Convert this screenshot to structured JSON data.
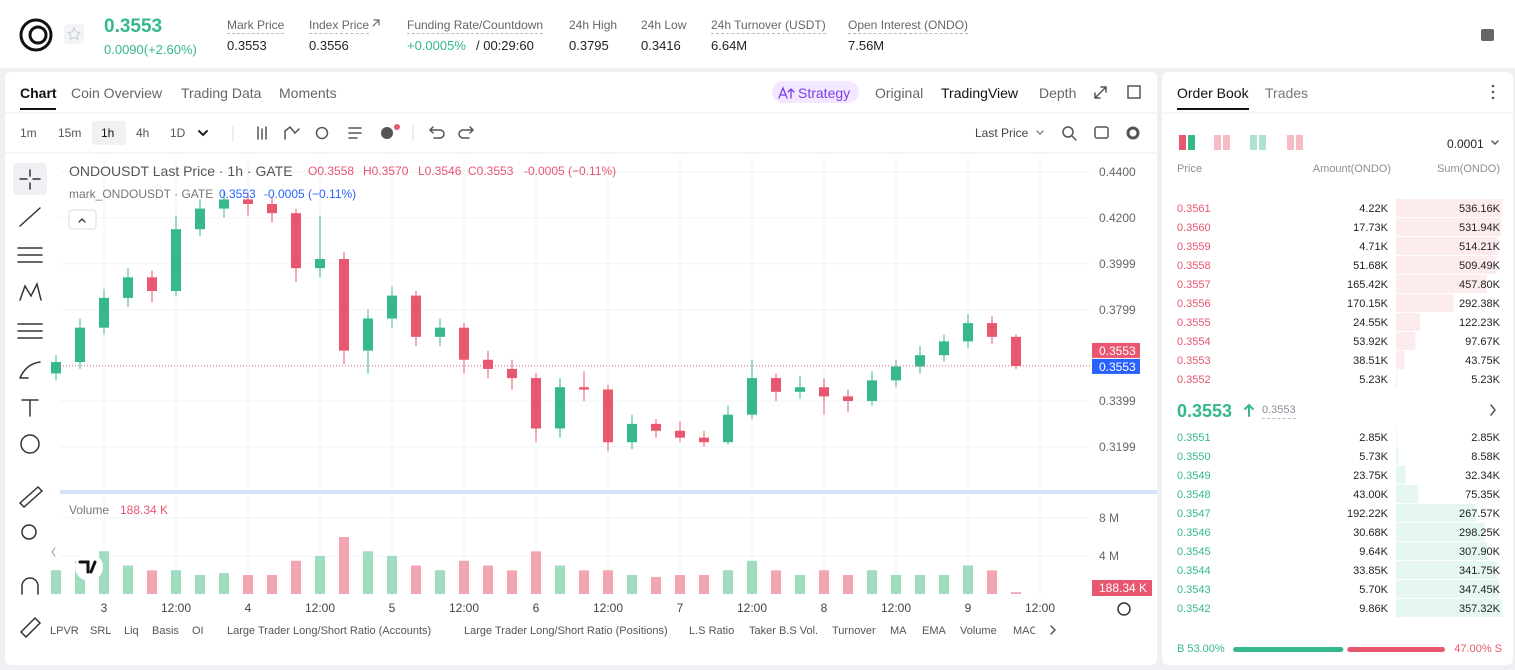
{
  "header": {
    "price": "0.3553",
    "change": "0.0090(+2.60%)",
    "stats": [
      {
        "label": "Mark Price",
        "value": "0.3553"
      },
      {
        "label": "Index Price",
        "value": "0.3556"
      },
      {
        "label": "Funding Rate/Countdown",
        "value": "+0.0005%",
        "extra": "/ 00:29:60"
      },
      {
        "label": "24h High",
        "value": "0.3795"
      },
      {
        "label": "24h Low",
        "value": "0.3416"
      },
      {
        "label": "24h Turnover (USDT)",
        "value": "6.64M"
      },
      {
        "label": "Open Interest (ONDO)",
        "value": "7.56M"
      }
    ]
  },
  "chart_tabs": [
    "Chart",
    "Coin Overview",
    "Trading Data",
    "Moments"
  ],
  "view_tabs": [
    "Strategy",
    "Original",
    "TradingView",
    "Depth"
  ],
  "intervals": [
    "1m",
    "15m",
    "1h",
    "4h",
    "1D"
  ],
  "price_source": "Last Price",
  "legend": {
    "symbol": "ONDOUSDT Last Price · 1h · GATE",
    "o": "O0.3558",
    "h": "H0.3570",
    "l": "L0.3546",
    "c": "C0.3553",
    "change": "-0.0005 (−0.11%)",
    "mark_symbol": "mark_ONDOUSDT · GATE",
    "mark_value": "0.3553",
    "mark_change": "-0.0005 (−0.11%)"
  },
  "chart_data": [
    {
      "type": "candlestick",
      "up_color": "#35b98a",
      "down_color": "#e8566f",
      "open": [
        0.352,
        0.357,
        0.372,
        0.385,
        0.394,
        0.388,
        0.415,
        0.424,
        0.428,
        0.426,
        0.422,
        0.398,
        0.402,
        0.362,
        0.376,
        0.386,
        0.368,
        0.372,
        0.358,
        0.354,
        0.35,
        0.328,
        0.346,
        0.345,
        0.322,
        0.33,
        0.327,
        0.324,
        0.322,
        0.334,
        0.35,
        0.344,
        0.346,
        0.342,
        0.34,
        0.349,
        0.355,
        0.36,
        0.366,
        0.374,
        0.368
      ],
      "high": [
        0.36,
        0.376,
        0.389,
        0.398,
        0.397,
        0.421,
        0.428,
        0.432,
        0.431,
        0.429,
        0.424,
        0.421,
        0.405,
        0.38,
        0.39,
        0.388,
        0.376,
        0.374,
        0.362,
        0.358,
        0.352,
        0.35,
        0.353,
        0.347,
        0.334,
        0.332,
        0.331,
        0.327,
        0.338,
        0.358,
        0.352,
        0.351,
        0.35,
        0.345,
        0.353,
        0.358,
        0.364,
        0.369,
        0.378,
        0.377,
        0.369
      ],
      "low": [
        0.349,
        0.354,
        0.369,
        0.381,
        0.383,
        0.386,
        0.412,
        0.42,
        0.421,
        0.418,
        0.392,
        0.394,
        0.356,
        0.352,
        0.372,
        0.364,
        0.364,
        0.352,
        0.35,
        0.345,
        0.322,
        0.324,
        0.34,
        0.318,
        0.319,
        0.324,
        0.322,
        0.32,
        0.321,
        0.332,
        0.34,
        0.341,
        0.334,
        0.335,
        0.338,
        0.346,
        0.352,
        0.357,
        0.363,
        0.365,
        0.354
      ],
      "close": [
        0.357,
        0.372,
        0.385,
        0.394,
        0.388,
        0.415,
        0.424,
        0.428,
        0.426,
        0.422,
        0.398,
        0.402,
        0.362,
        0.376,
        0.386,
        0.368,
        0.372,
        0.358,
        0.354,
        0.35,
        0.328,
        0.346,
        0.345,
        0.322,
        0.33,
        0.327,
        0.324,
        0.322,
        0.334,
        0.35,
        0.344,
        0.346,
        0.342,
        0.34,
        0.349,
        0.355,
        0.36,
        0.366,
        0.374,
        0.368,
        0.3553
      ],
      "ylim": [
        0.302,
        0.4474
      ],
      "yticks": [
        {
          "value": 0.44,
          "label": "0.4400"
        },
        {
          "value": 0.42,
          "label": "0.4200"
        },
        0.3999,
        0.3799,
        0.3399,
        0.3199
      ],
      "last_price": 0.3553,
      "mark_price": 0.3553,
      "x_labels": [
        "3",
        "12:00",
        "4",
        "12:00",
        "5",
        "12:00",
        "6",
        "12:00",
        "7",
        "12:00",
        "8",
        "12:00",
        "9",
        "12:00"
      ]
    },
    {
      "type": "bar",
      "title": "Volume",
      "up_color": "#9fdcc0",
      "down_color": "#f2a5b2",
      "values": [
        2.5,
        3.5,
        4.5,
        3,
        2.5,
        2.5,
        2,
        2.2,
        2,
        2,
        3.5,
        4,
        6,
        4.5,
        4,
        3,
        2.5,
        3.5,
        3,
        2.5,
        4.5,
        3,
        2.5,
        2.5,
        2,
        1.8,
        2,
        2,
        2.5,
        3.5,
        2.5,
        2,
        2.5,
        2,
        2.5,
        2,
        2,
        2,
        3,
        2.5,
        0.18834
      ],
      "current": {
        "value": 0.18834,
        "label": "188.34 K"
      },
      "ylim": [
        0,
        9.9
      ],
      "yticks": [
        {
          "value": 4,
          "label": "4 M"
        },
        {
          "value": 8,
          "label": "8 M"
        }
      ]
    }
  ],
  "indicators": [
    "LPVR",
    "SRL",
    "Liq",
    "Basis",
    "OI",
    "Large Trader Long/Short Ratio (Accounts)",
    "Large Trader Long/Short Ratio (Positions)",
    "L.S Ratio",
    "Taker B.S Vol.",
    "Turnover",
    "MA",
    "EMA",
    "Volume",
    "MACD"
  ],
  "order_book": {
    "tabs": [
      "Order Book",
      "Trades"
    ],
    "precision": "0.0001",
    "headers": [
      "Price",
      "Amount(ONDO)",
      "Sum(ONDO)"
    ],
    "asks": [
      [
        "0.3561",
        "4.22K",
        "536.16K"
      ],
      [
        "0.3560",
        "17.73K",
        "531.94K"
      ],
      [
        "0.3559",
        "4.71K",
        "514.21K"
      ],
      [
        "0.3558",
        "51.68K",
        "509.49K"
      ],
      [
        "0.3557",
        "165.42K",
        "457.80K"
      ],
      [
        "0.3556",
        "170.15K",
        "292.38K"
      ],
      [
        "0.3555",
        "24.55K",
        "122.23K"
      ],
      [
        "0.3554",
        "53.92K",
        "97.67K"
      ],
      [
        "0.3553",
        "38.51K",
        "43.75K"
      ],
      [
        "0.3552",
        "5.23K",
        "5.23K"
      ]
    ],
    "mid_price": "0.3553",
    "mark_price": "0.3553",
    "bids": [
      [
        "0.3551",
        "2.85K",
        "2.85K"
      ],
      [
        "0.3550",
        "5.73K",
        "8.58K"
      ],
      [
        "0.3549",
        "23.75K",
        "32.34K"
      ],
      [
        "0.3548",
        "43.00K",
        "75.35K"
      ],
      [
        "0.3547",
        "192.22K",
        "267.57K"
      ],
      [
        "0.3546",
        "30.68K",
        "298.25K"
      ],
      [
        "0.3545",
        "9.64K",
        "307.90K"
      ],
      [
        "0.3544",
        "33.85K",
        "341.75K"
      ],
      [
        "0.3543",
        "5.70K",
        "347.45K"
      ],
      [
        "0.3542",
        "9.86K",
        "357.32K"
      ]
    ],
    "ratio": {
      "buy": {
        "value": 53,
        "label": "B 53.00%"
      },
      "sell": {
        "value": 47,
        "label": "47.00% S"
      }
    }
  }
}
